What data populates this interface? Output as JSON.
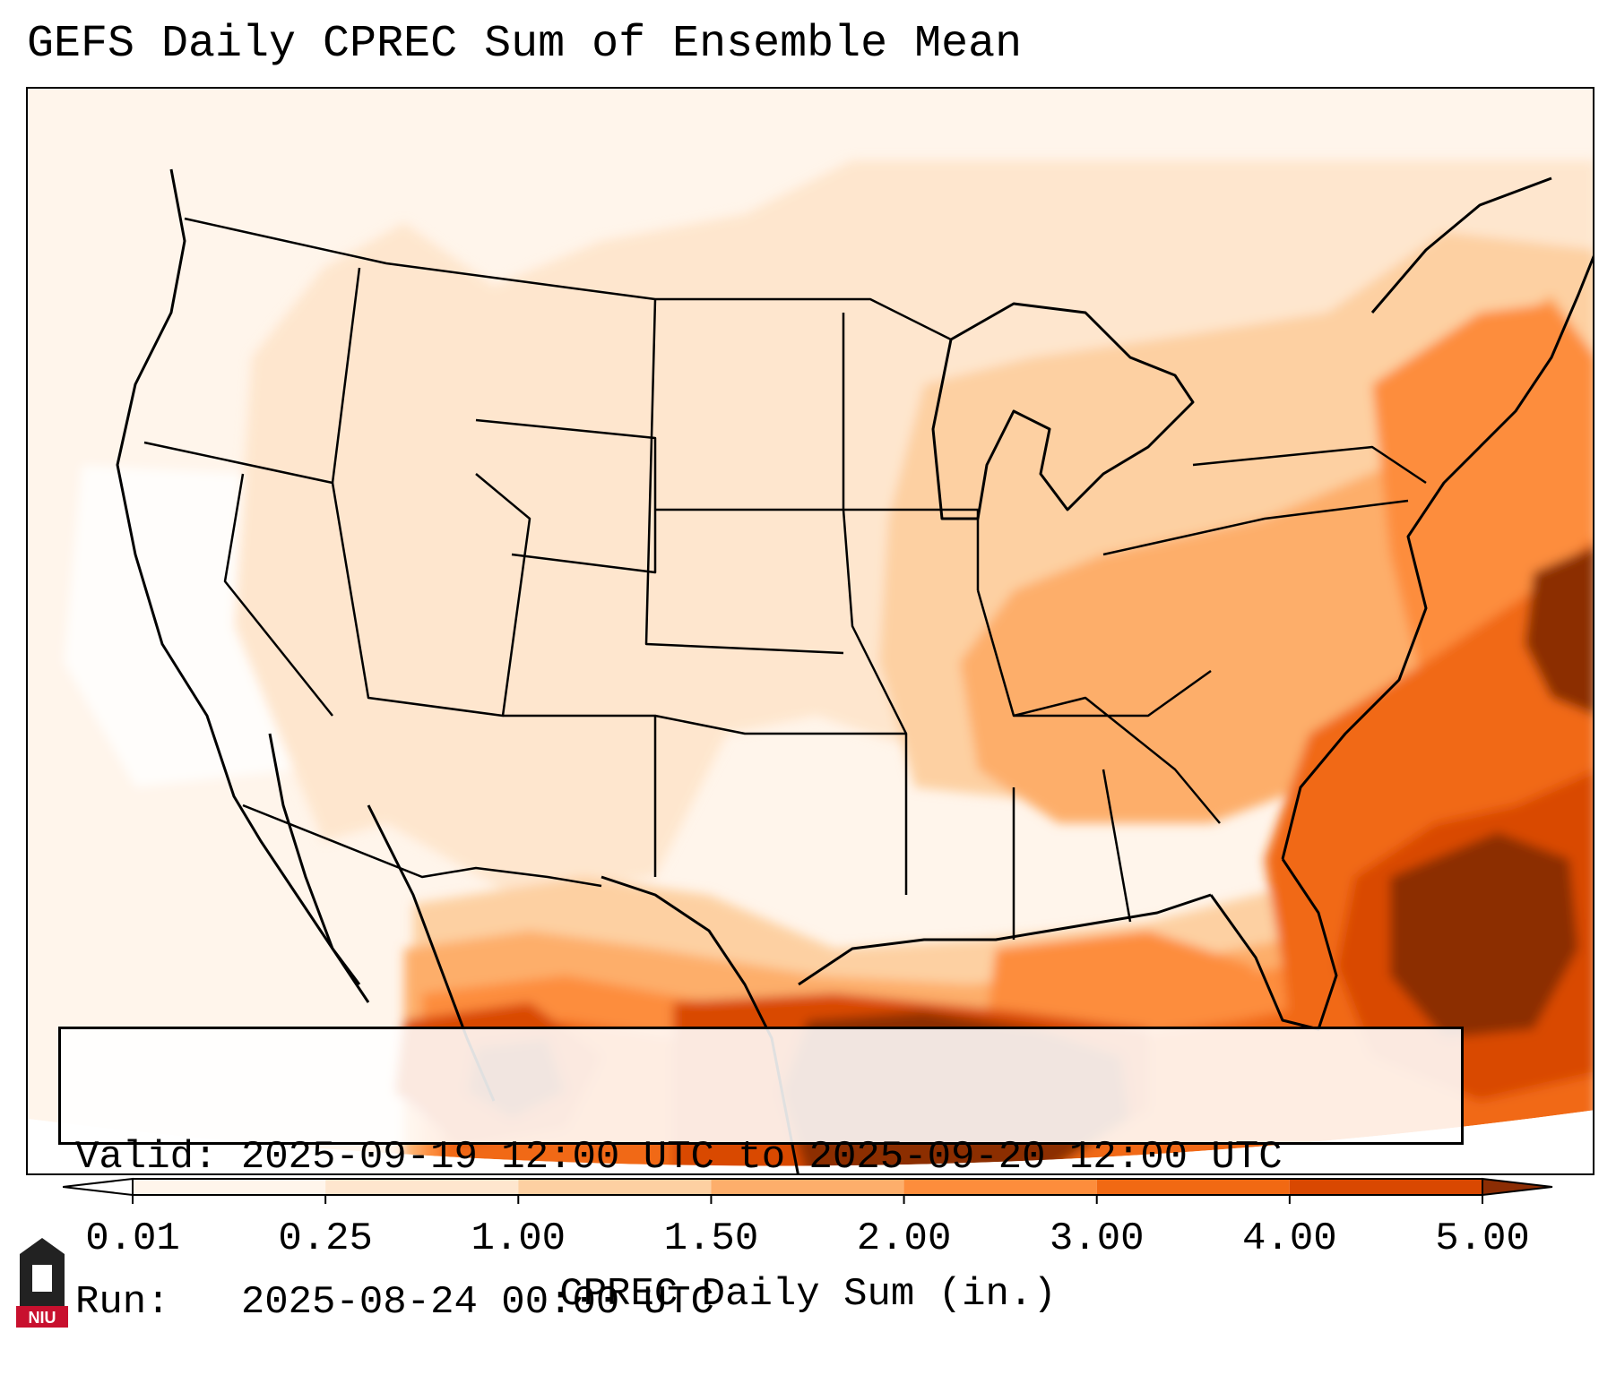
{
  "title": "GEFS Daily CPREC Sum of Ensemble Mean",
  "info": {
    "valid_label": "Valid:",
    "valid_value": "2025-09-19 12:00 UTC to 2025-09-20 12:00 UTC",
    "run_label": "Run:",
    "run_value": "2025-08-24 00:00 UTC"
  },
  "colorbar": {
    "label": "CPREC Daily Sum (in.)",
    "ticks": [
      "0.01",
      "0.25",
      "1.00",
      "1.50",
      "2.00",
      "3.00",
      "4.00",
      "5.00"
    ],
    "colors": [
      "#fff5eb",
      "#fee6ce",
      "#fdd0a2",
      "#fdae6b",
      "#fd8d3c",
      "#f16913",
      "#d94801",
      "#8c2d04"
    ],
    "under_color": "#ffffff",
    "over_color": "#8c2d04"
  },
  "logo": {
    "text": "NIU",
    "color": "#c8102e"
  }
}
